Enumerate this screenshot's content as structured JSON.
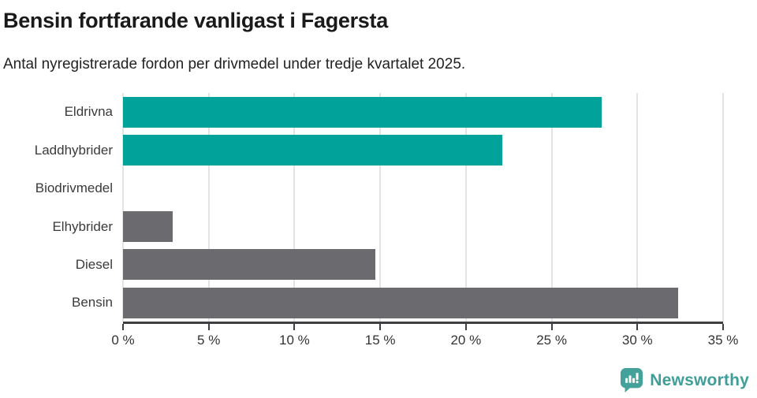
{
  "header": {
    "title": "Bensin fortfarande vanligast i Fagersta",
    "subtitle": "Antal nyregistrerade fordon per drivmedel under tredje kvartalet 2025."
  },
  "chart_data": {
    "type": "bar",
    "orientation": "horizontal",
    "title": "Bensin fortfarande vanligast i Fagersta",
    "subtitle": "Antal nyregistrerade fordon per drivmedel under tredje kvartalet 2025.",
    "categories": [
      "Eldrivna",
      "Laddhybrider",
      "Biodrivmedel",
      "Elhybrider",
      "Diesel",
      "Bensin"
    ],
    "values": [
      27.9,
      22.1,
      0,
      2.9,
      14.7,
      32.4
    ],
    "unit": "%",
    "xlim": [
      0,
      35
    ],
    "x_tick_step": 5,
    "x_tick_labels": [
      "0 %",
      "5 %",
      "10 %",
      "15 %",
      "20 %",
      "25 %",
      "30 %",
      "35 %"
    ],
    "bar_colors": [
      "#00a29a",
      "#00a29a",
      "#00a29a",
      "#6a6a6f",
      "#6a6a6f",
      "#6a6a6f"
    ],
    "grid": true,
    "legend": false,
    "gridline_color": "#e3e3e3",
    "axis_color": "#3f3f42",
    "category_label_color": "#3a3a3a",
    "tick_label_color": "#333333"
  },
  "footer": {
    "brand": "Newsworthy",
    "brand_color": "#3f9f98",
    "logo_color": "#45a29b"
  }
}
